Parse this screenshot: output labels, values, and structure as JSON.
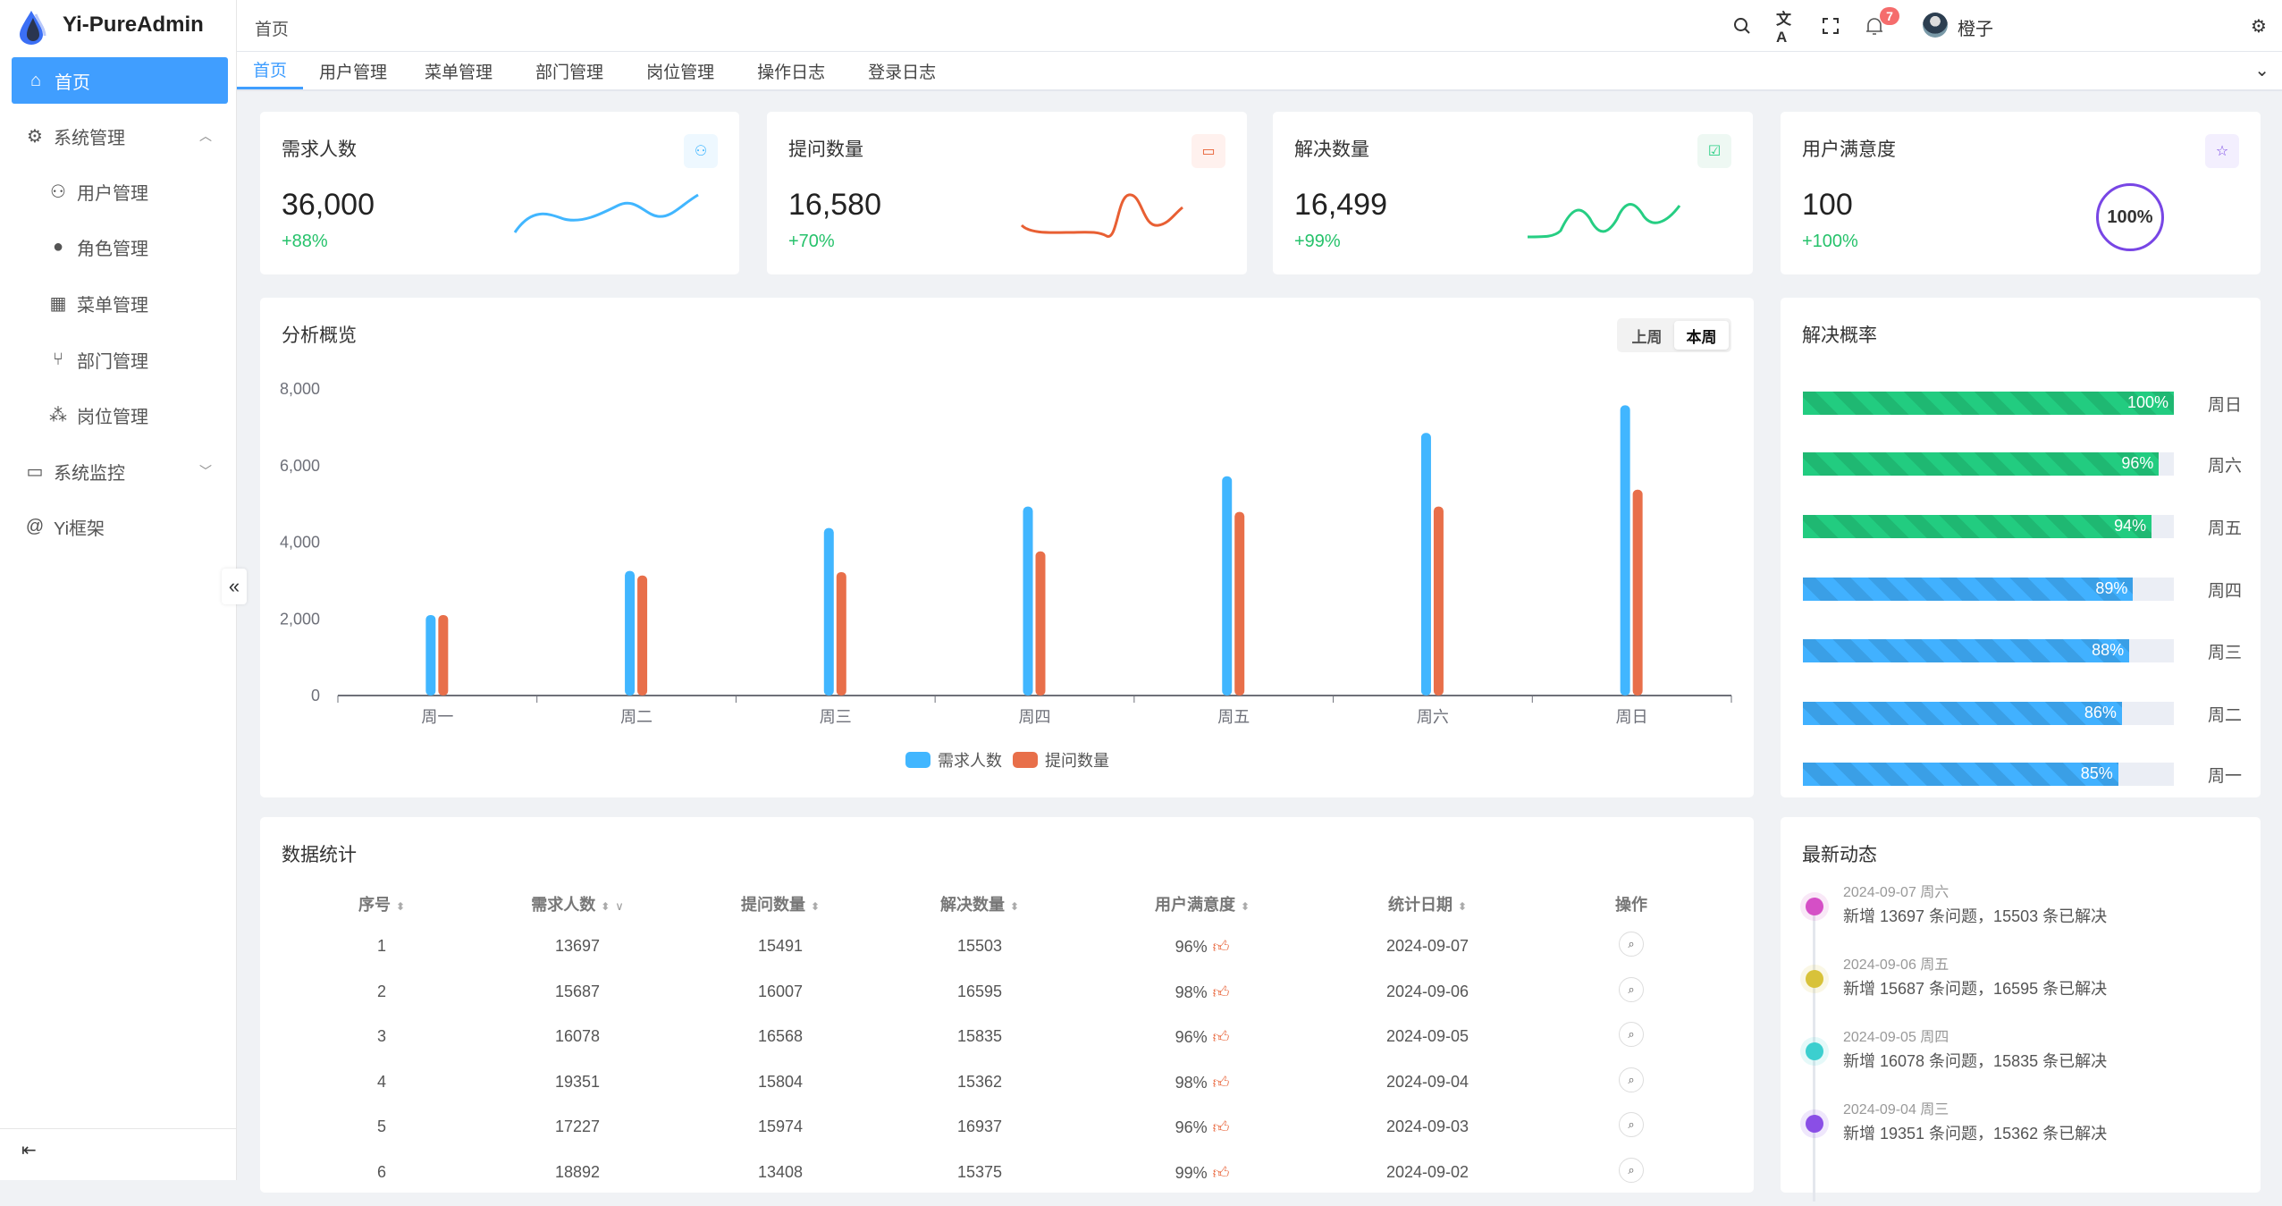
{
  "app": {
    "title": "Yi-PureAdmin"
  },
  "sidebar": {
    "items": [
      {
        "label": "首页",
        "icon": "home-icon",
        "active": true
      },
      {
        "label": "系统管理",
        "icon": "gear-icon",
        "expanded": true
      },
      {
        "label": "用户管理",
        "icon": "user-lock-icon"
      },
      {
        "label": "角色管理",
        "icon": "role-icon"
      },
      {
        "label": "菜单管理",
        "icon": "grid-icon"
      },
      {
        "label": "部门管理",
        "icon": "branch-icon"
      },
      {
        "label": "岗位管理",
        "icon": "nodes-icon"
      },
      {
        "label": "系统监控",
        "icon": "monitor-icon",
        "expanded": false
      },
      {
        "label": "Yi框架",
        "icon": "at-icon"
      }
    ]
  },
  "header": {
    "breadcrumb": "首页",
    "notifications": "7",
    "username": "橙子"
  },
  "tabs": [
    "首页",
    "用户管理",
    "菜单管理",
    "部门管理",
    "岗位管理",
    "操作日志",
    "登录日志"
  ],
  "stats": [
    {
      "title": "需求人数",
      "value": "36,000",
      "change": "+88%",
      "color": "#41b6ff",
      "icon": "users-icon"
    },
    {
      "title": "提问数量",
      "value": "16,580",
      "change": "+70%",
      "color": "#e85f33",
      "icon": "chat-icon"
    },
    {
      "title": "解决数量",
      "value": "16,499",
      "change": "+99%",
      "color": "#26ce83",
      "icon": "check-chat-icon"
    },
    {
      "title": "用户满意度",
      "value": "100",
      "change": "+100%",
      "color": "#7846e5",
      "icon": "star-icon",
      "ring": "100%"
    }
  ],
  "overview": {
    "title": "分析概览",
    "toggle": [
      "上周",
      "本周"
    ],
    "toggle_selected": "本周"
  },
  "chart_data": {
    "type": "bar",
    "categories": [
      "周一",
      "周二",
      "周三",
      "周四",
      "周五",
      "周六",
      "周日"
    ],
    "series": [
      {
        "name": "需求人数",
        "color": "#41b6ff",
        "values": [
          2100,
          3250,
          4370,
          4930,
          5720,
          6850,
          7570
        ]
      },
      {
        "name": "提问数量",
        "color": "#e86f4a",
        "values": [
          2100,
          3130,
          3220,
          3760,
          4790,
          4930,
          5370
        ]
      }
    ],
    "yticks": [
      "0",
      "2,000",
      "4,000",
      "6,000",
      "8,000"
    ],
    "ylim": [
      0,
      8000
    ],
    "legend": "bottom-center"
  },
  "solve_rate": {
    "title": "解决概率",
    "items": [
      {
        "day": "周日",
        "pct": 100,
        "label": "100%",
        "color": "green"
      },
      {
        "day": "周六",
        "pct": 96,
        "label": "96%",
        "color": "green"
      },
      {
        "day": "周五",
        "pct": 94,
        "label": "94%",
        "color": "green"
      },
      {
        "day": "周四",
        "pct": 89,
        "label": "89%",
        "color": "blue"
      },
      {
        "day": "周三",
        "pct": 88,
        "label": "88%",
        "color": "blue"
      },
      {
        "day": "周二",
        "pct": 86,
        "label": "86%",
        "color": "blue"
      },
      {
        "day": "周一",
        "pct": 85,
        "label": "85%",
        "color": "blue"
      }
    ]
  },
  "table": {
    "title": "数据统计",
    "columns": [
      "序号",
      "需求人数",
      "提问数量",
      "解决数量",
      "用户满意度",
      "统计日期",
      "操作"
    ],
    "rows": [
      [
        "1",
        "13697",
        "15491",
        "15503",
        "96%",
        "2024-09-07"
      ],
      [
        "2",
        "15687",
        "16007",
        "16595",
        "98%",
        "2024-09-06"
      ],
      [
        "3",
        "16078",
        "16568",
        "15835",
        "96%",
        "2024-09-05"
      ],
      [
        "4",
        "19351",
        "15804",
        "15362",
        "98%",
        "2024-09-04"
      ],
      [
        "5",
        "17227",
        "15974",
        "16937",
        "96%",
        "2024-09-03"
      ],
      [
        "6",
        "18892",
        "13408",
        "15375",
        "99%",
        "2024-09-02"
      ]
    ]
  },
  "timeline": {
    "title": "最新动态",
    "items": [
      {
        "date": "2024-09-07 周六",
        "text": "新增 13697 条问题，15503 条已解决",
        "color": "#d54fc6"
      },
      {
        "date": "2024-09-06 周五",
        "text": "新增 15687 条问题，16595 条已解决",
        "color": "#d8c23a"
      },
      {
        "date": "2024-09-05 周四",
        "text": "新增 16078 条问题，15835 条已解决",
        "color": "#3ccfcf"
      },
      {
        "date": "2024-09-04 周三",
        "text": "新增 19351 条问题，15362 条已解决",
        "color": "#8a4ee6"
      }
    ]
  }
}
